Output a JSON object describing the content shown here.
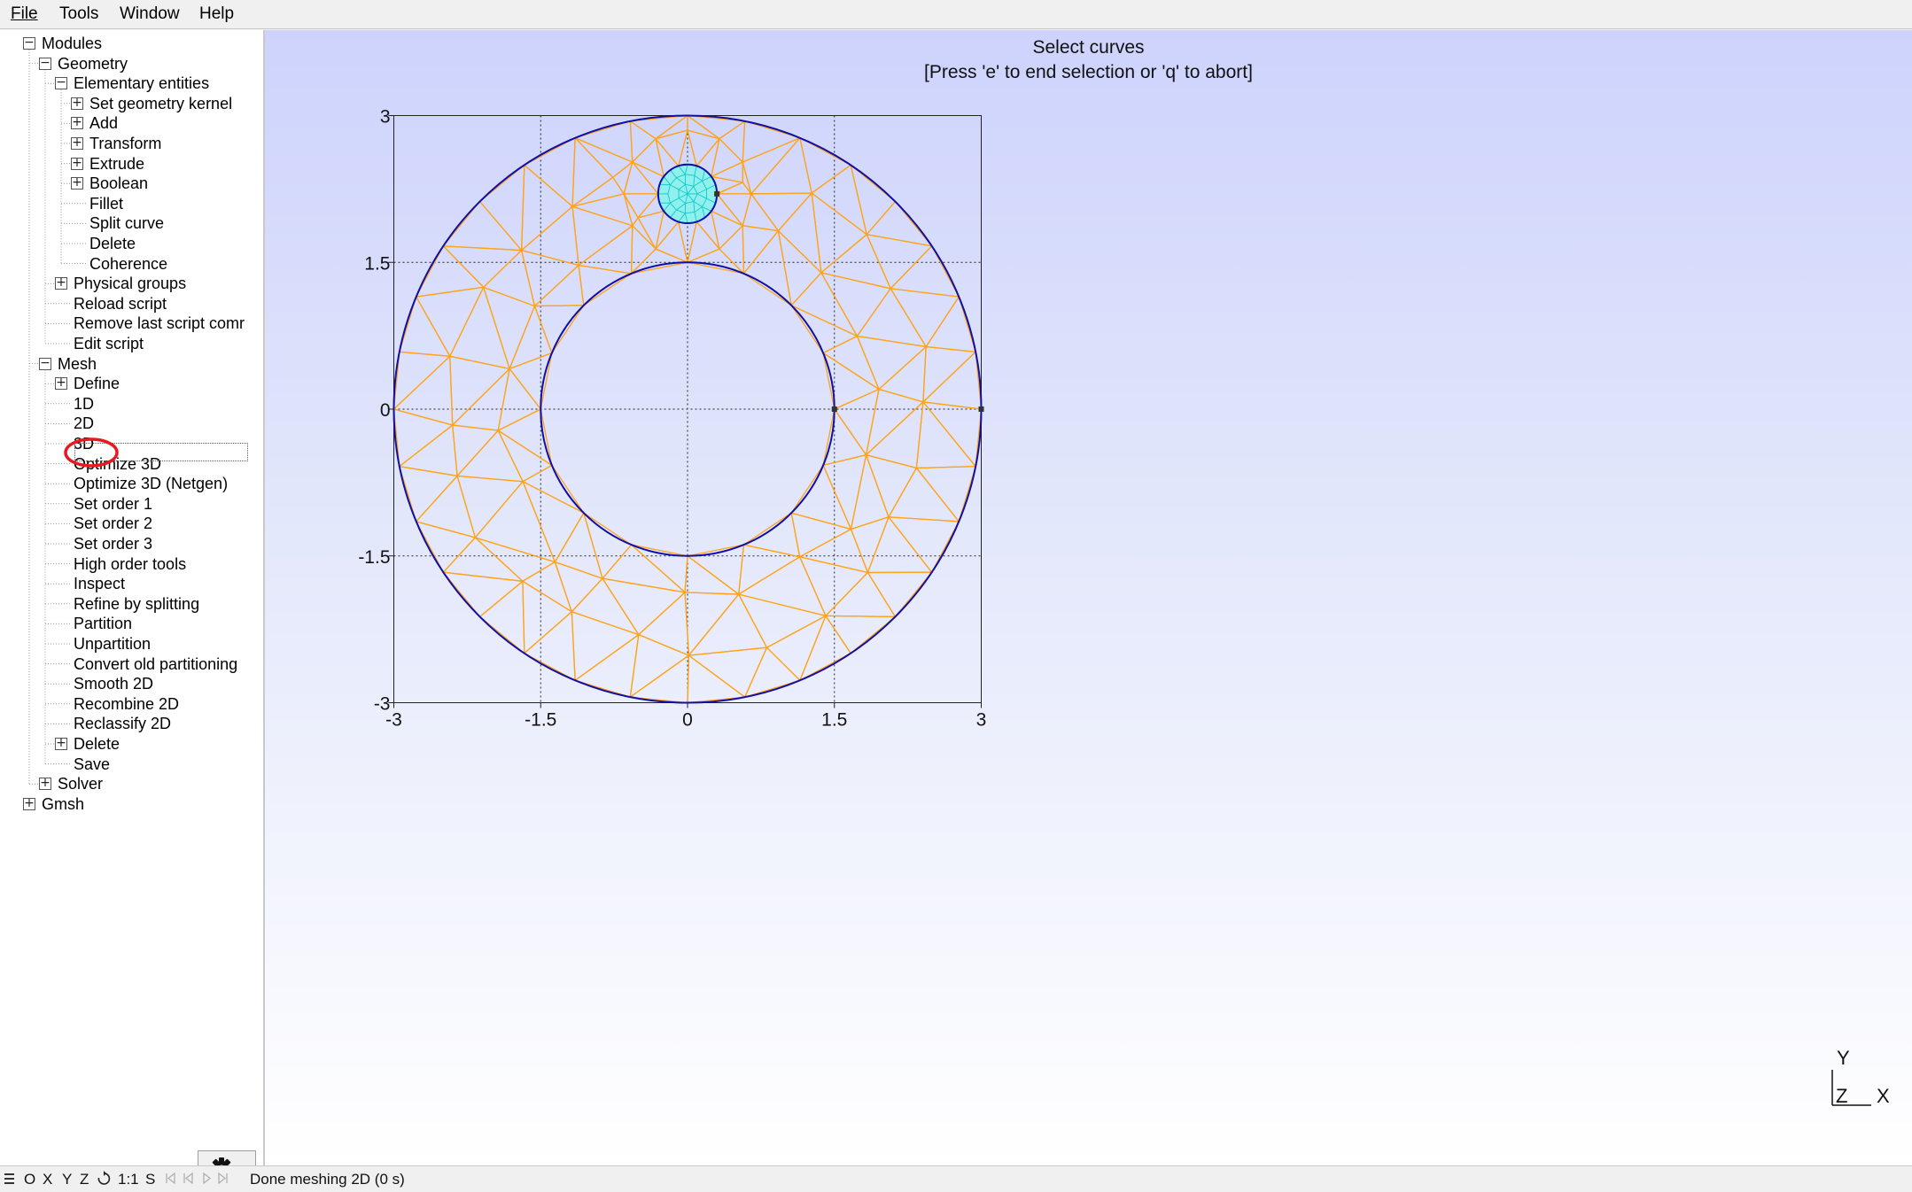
{
  "menubar": {
    "items": [
      {
        "label": "File",
        "name": "menu-file"
      },
      {
        "label": "Tools",
        "name": "menu-tools"
      },
      {
        "label": "Window",
        "name": "menu-window"
      },
      {
        "label": "Help",
        "name": "menu-help"
      }
    ]
  },
  "tree": {
    "items": [
      {
        "label": "Modules",
        "level": 0,
        "toggle": "minus"
      },
      {
        "label": "Geometry",
        "level": 1,
        "toggle": "minus"
      },
      {
        "label": "Elementary entities",
        "level": 2,
        "toggle": "minus"
      },
      {
        "label": "Set geometry kernel",
        "level": 3,
        "toggle": "plus"
      },
      {
        "label": "Add",
        "level": 3,
        "toggle": "plus"
      },
      {
        "label": "Transform",
        "level": 3,
        "toggle": "plus"
      },
      {
        "label": "Extrude",
        "level": 3,
        "toggle": "plus"
      },
      {
        "label": "Boolean",
        "level": 3,
        "toggle": "plus"
      },
      {
        "label": "Fillet",
        "level": 3,
        "toggle": "none"
      },
      {
        "label": "Split curve",
        "level": 3,
        "toggle": "none"
      },
      {
        "label": "Delete",
        "level": 3,
        "toggle": "none"
      },
      {
        "label": "Coherence",
        "level": 3,
        "toggle": "none"
      },
      {
        "label": "Physical groups",
        "level": 2,
        "toggle": "plus"
      },
      {
        "label": "Reload script",
        "level": 2,
        "toggle": "none"
      },
      {
        "label": "Remove last script comr",
        "level": 2,
        "toggle": "none"
      },
      {
        "label": "Edit script",
        "level": 2,
        "toggle": "none"
      },
      {
        "label": "Mesh",
        "level": 1,
        "toggle": "minus"
      },
      {
        "label": "Define",
        "level": 2,
        "toggle": "plus"
      },
      {
        "label": "1D",
        "level": 2,
        "toggle": "none"
      },
      {
        "label": "2D",
        "level": 2,
        "toggle": "none",
        "selected": true
      },
      {
        "label": "3D",
        "level": 2,
        "toggle": "none"
      },
      {
        "label": "Optimize 3D",
        "level": 2,
        "toggle": "none"
      },
      {
        "label": "Optimize 3D (Netgen)",
        "level": 2,
        "toggle": "none"
      },
      {
        "label": "Set order 1",
        "level": 2,
        "toggle": "none"
      },
      {
        "label": "Set order 2",
        "level": 2,
        "toggle": "none"
      },
      {
        "label": "Set order 3",
        "level": 2,
        "toggle": "none"
      },
      {
        "label": "High order tools",
        "level": 2,
        "toggle": "none"
      },
      {
        "label": "Inspect",
        "level": 2,
        "toggle": "none"
      },
      {
        "label": "Refine by splitting",
        "level": 2,
        "toggle": "none"
      },
      {
        "label": "Partition",
        "level": 2,
        "toggle": "none"
      },
      {
        "label": "Unpartition",
        "level": 2,
        "toggle": "none"
      },
      {
        "label": "Convert old partitioning",
        "level": 2,
        "toggle": "none"
      },
      {
        "label": "Smooth 2D",
        "level": 2,
        "toggle": "none"
      },
      {
        "label": "Recombine 2D",
        "level": 2,
        "toggle": "none"
      },
      {
        "label": "Reclassify 2D",
        "level": 2,
        "toggle": "none"
      },
      {
        "label": "Delete",
        "level": 2,
        "toggle": "plus"
      },
      {
        "label": "Save",
        "level": 2,
        "toggle": "none"
      },
      {
        "label": "Solver",
        "level": 1,
        "toggle": "plus"
      },
      {
        "label": "Gmsh",
        "level": 0,
        "toggle": "plus"
      }
    ]
  },
  "viewport": {
    "prompt_title": "Select curves",
    "prompt_hint": "[Press 'e' to end selection or 'q' to abort]",
    "x_ticks": [
      "-3",
      "-1.5",
      "0",
      "1.5",
      "3"
    ],
    "y_ticks": [
      "3",
      "1.5",
      "0",
      "-1.5",
      "-3"
    ],
    "axes": {
      "x_range": [
        -3,
        3
      ],
      "y_range": [
        -3,
        3
      ],
      "grid": true
    },
    "geometry": {
      "outer_circle_radius": 3,
      "inner_circle_radius": 1.5,
      "small_circle_center": [
        0,
        2.2
      ],
      "small_circle_radius": 0.3
    },
    "colors": {
      "curves": "#1010a8",
      "mesh_lines": "#ffa31a",
      "small_mesh_fill": "#8ff0ee",
      "small_mesh_lines": "#12c9c9",
      "background_top": "#cdd3fc",
      "highlight": "#e8191f"
    },
    "triad": {
      "y": "Y",
      "z": "Z",
      "x": "X"
    }
  },
  "statusbar": {
    "menu_icon": "hamburger-icon",
    "o": "O",
    "x": "X",
    "y": "Y",
    "z": "Z",
    "rotate_icon": "rotate-icon",
    "scale": "1:1",
    "s": "S",
    "message": "Done meshing 2D (0 s)"
  }
}
